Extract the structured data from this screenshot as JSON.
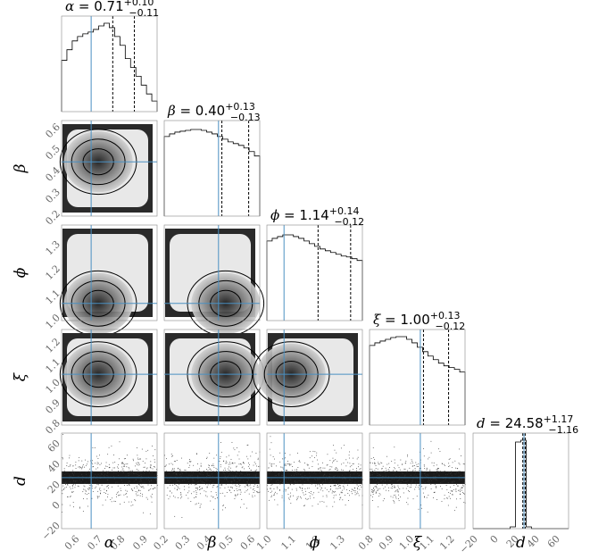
{
  "chart_data": {
    "type": "corner-plot",
    "parameters": [
      {
        "symbol": "α",
        "median": "0.71",
        "plus": "+0.10",
        "minus": "−0.11",
        "value": 0.71,
        "ticks": [
          "0.6",
          "0.7",
          "0.8",
          "0.9"
        ],
        "tick_values": [
          0.6,
          0.7,
          0.8,
          0.9
        ],
        "range": [
          0.52,
          0.94
        ],
        "truth": 0.65
      },
      {
        "symbol": "β",
        "median": "0.40",
        "plus": "+0.13",
        "minus": "−0.13",
        "value": 0.4,
        "ticks": [
          "0.2",
          "0.3",
          "0.4",
          "0.5",
          "0.6"
        ],
        "tick_values": [
          0.2,
          0.3,
          0.4,
          0.5,
          0.6
        ],
        "range": [
          0.18,
          0.62
        ],
        "truth": 0.43
      },
      {
        "symbol": "ϕ",
        "median": "1.14",
        "plus": "+0.14",
        "minus": "−0.12",
        "value": 1.14,
        "ticks": [
          "1.0",
          "1.1",
          "1.2",
          "1.3"
        ],
        "tick_values": [
          1.0,
          1.1,
          1.2,
          1.3
        ],
        "range": [
          0.98,
          1.37
        ],
        "truth": 1.05
      },
      {
        "symbol": "ξ",
        "median": "1.00",
        "plus": "+0.13",
        "minus": "−0.12",
        "value": 1.0,
        "ticks": [
          "0.8",
          "0.9",
          "1.0",
          "1.1",
          "1.2"
        ],
        "tick_values": [
          0.8,
          0.9,
          1.0,
          1.1,
          1.2
        ],
        "range": [
          0.78,
          1.25
        ],
        "truth": 1.03
      },
      {
        "symbol": "d",
        "median": "24.58",
        "plus": "+1.17",
        "minus": "−1.16",
        "value": 24.58,
        "ticks": [
          "−20",
          "0",
          "20",
          "40",
          "60"
        ],
        "tick_values": [
          -20,
          0,
          20,
          40,
          60
        ],
        "range": [
          -25,
          68
        ],
        "truth": 24.58
      }
    ],
    "histograms": [
      [
        0.58,
        0.7,
        0.8,
        0.85,
        0.88,
        0.9,
        0.93,
        0.97,
        1.0,
        0.95,
        0.85,
        0.75,
        0.6,
        0.5,
        0.4,
        0.3,
        0.2,
        0.12
      ],
      [
        0.9,
        0.93,
        0.95,
        0.96,
        0.97,
        0.98,
        0.98,
        0.97,
        0.95,
        0.93,
        0.9,
        0.87,
        0.84,
        0.82,
        0.8,
        0.77,
        0.73,
        0.68
      ],
      [
        0.9,
        0.93,
        0.95,
        0.97,
        0.97,
        0.95,
        0.93,
        0.9,
        0.87,
        0.84,
        0.81,
        0.79,
        0.77,
        0.75,
        0.73,
        0.72,
        0.7,
        0.68
      ],
      [
        0.9,
        0.93,
        0.95,
        0.97,
        0.99,
        1.0,
        1.0,
        0.97,
        0.93,
        0.88,
        0.83,
        0.78,
        0.74,
        0.7,
        0.67,
        0.65,
        0.63,
        0.6
      ],
      [
        0.0,
        0.0,
        0.0,
        0.0,
        0.0,
        0.0,
        0.0,
        0.02,
        0.98,
        1.0,
        0.02,
        0.0,
        0.0,
        0.0,
        0.0,
        0.0,
        0.0,
        0.0
      ]
    ],
    "quantile_lines": "dashed",
    "truth_color": "#4a90c2",
    "density_style": "grayscale contours"
  }
}
